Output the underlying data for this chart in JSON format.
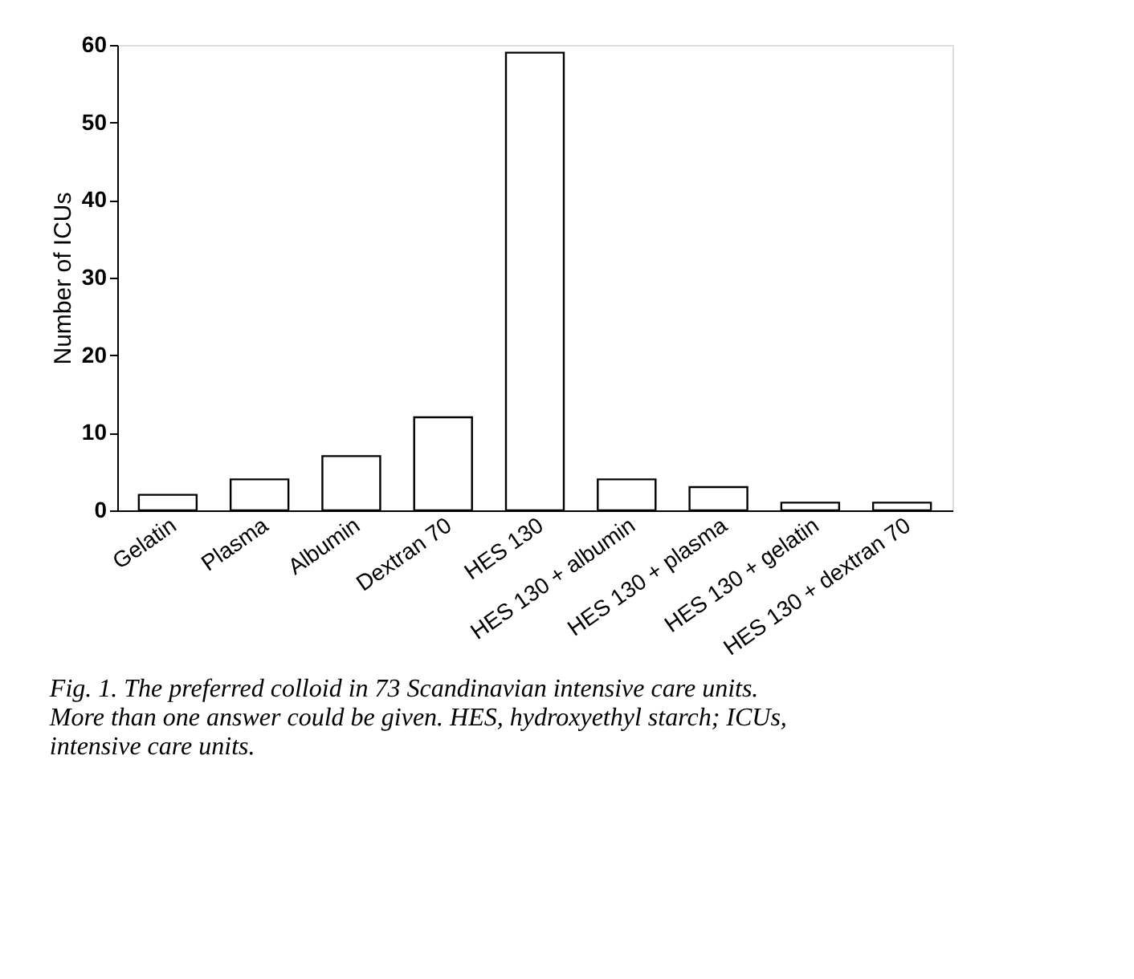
{
  "chart_data": {
    "type": "bar",
    "ylabel": "Number of ICUs",
    "categories": [
      "Gelatin",
      "Plasma",
      "Albumin",
      "Dextran 70",
      "HES 130",
      "HES 130 + albumin",
      "HES 130 + plasma",
      "HES 130 + gelatin",
      "HES 130 + dextran 70"
    ],
    "values": [
      2,
      4,
      7,
      12,
      59,
      4,
      3,
      1,
      1
    ],
    "color": "#ffffff",
    "ylim": [
      0,
      60
    ],
    "yticks": [
      0,
      10,
      20,
      30,
      40,
      50,
      60
    ],
    "grid": false,
    "annotations": [
      "Fig. 1. The preferred colloid in 73 Scandinavian intensive care units. More than one answer could be given. HES, hydroxyethyl starch; ICUs, intensive care units."
    ]
  }
}
